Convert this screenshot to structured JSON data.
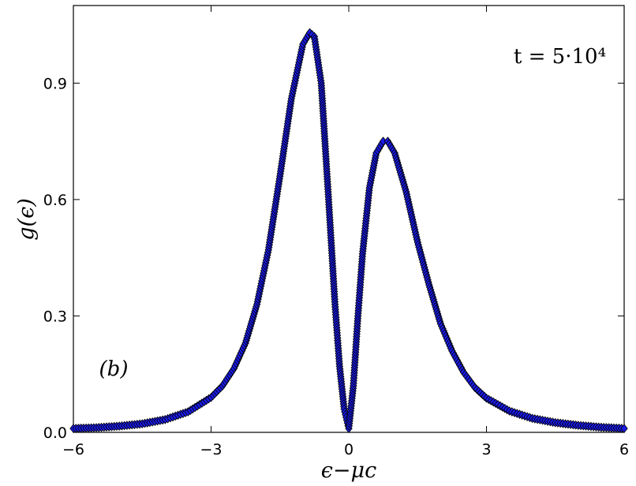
{
  "chart_data": {
    "type": "scatter",
    "title": "",
    "xlabel": "ϵ−μc",
    "ylabel": "g(ϵ)",
    "xlim": [
      -6,
      6
    ],
    "ylim": [
      0,
      1.1
    ],
    "x_ticks": [
      -6,
      -3,
      0,
      3,
      6
    ],
    "x_tick_labels": [
      "−6",
      "−3",
      "0",
      "3",
      "6"
    ],
    "y_ticks": [
      0,
      0.3,
      0.6,
      0.9
    ],
    "y_tick_labels": [
      "0.0",
      "0.3",
      "0.6",
      "0.9"
    ],
    "grid": false,
    "marker": "diamond",
    "marker_color": "#1a1ae6",
    "marker_edge_color": "#000000",
    "annotations": {
      "time": "t = 5·10⁴",
      "panel": "(b)"
    },
    "series": [
      {
        "x": [
          -6.0,
          -5.5,
          -5.0,
          -4.5,
          -4.0,
          -3.5,
          -3.0,
          -2.75,
          -2.5,
          -2.25,
          -2.0,
          -1.75,
          -1.5,
          -1.25,
          -1.0,
          -0.85,
          -0.75,
          -0.6,
          -0.45,
          -0.3,
          -0.2,
          -0.1,
          0.0,
          0.1,
          0.2,
          0.3,
          0.45,
          0.6,
          0.75,
          0.85,
          1.0,
          1.25,
          1.5,
          1.75,
          2.0,
          2.25,
          2.5,
          2.75,
          3.0,
          3.5,
          4.0,
          4.5,
          5.0,
          5.5,
          6.0
        ],
        "y": [
          0.01,
          0.012,
          0.016,
          0.022,
          0.033,
          0.053,
          0.09,
          0.12,
          0.165,
          0.23,
          0.33,
          0.47,
          0.66,
          0.86,
          1.0,
          1.03,
          1.02,
          0.9,
          0.62,
          0.33,
          0.17,
          0.06,
          0.01,
          0.12,
          0.3,
          0.46,
          0.63,
          0.72,
          0.75,
          0.75,
          0.72,
          0.62,
          0.49,
          0.38,
          0.28,
          0.21,
          0.155,
          0.115,
          0.088,
          0.055,
          0.036,
          0.025,
          0.018,
          0.013,
          0.01
        ]
      }
    ]
  }
}
